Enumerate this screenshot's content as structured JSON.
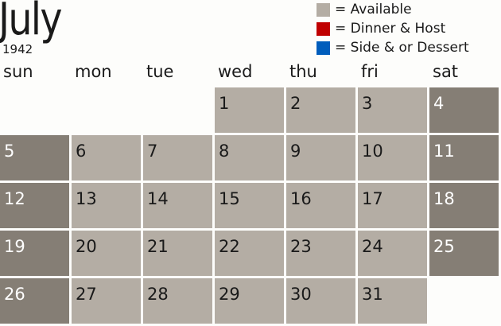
{
  "header": {
    "month": "July",
    "year": "1942"
  },
  "legend": [
    {
      "label": "= Available",
      "color": "#b4ada4"
    },
    {
      "label": "= Dinner & Host",
      "color": "#c00000"
    },
    {
      "label": "= Side & or Dessert",
      "color": "#005dbc"
    }
  ],
  "weekdays": [
    "sun",
    "mon",
    "tue",
    "wed",
    "thu",
    "fri",
    "sat"
  ],
  "first_weekday": 3,
  "days_in_month": 31,
  "colors": {
    "available": "#b4ada4",
    "weekend": "#857e75"
  }
}
